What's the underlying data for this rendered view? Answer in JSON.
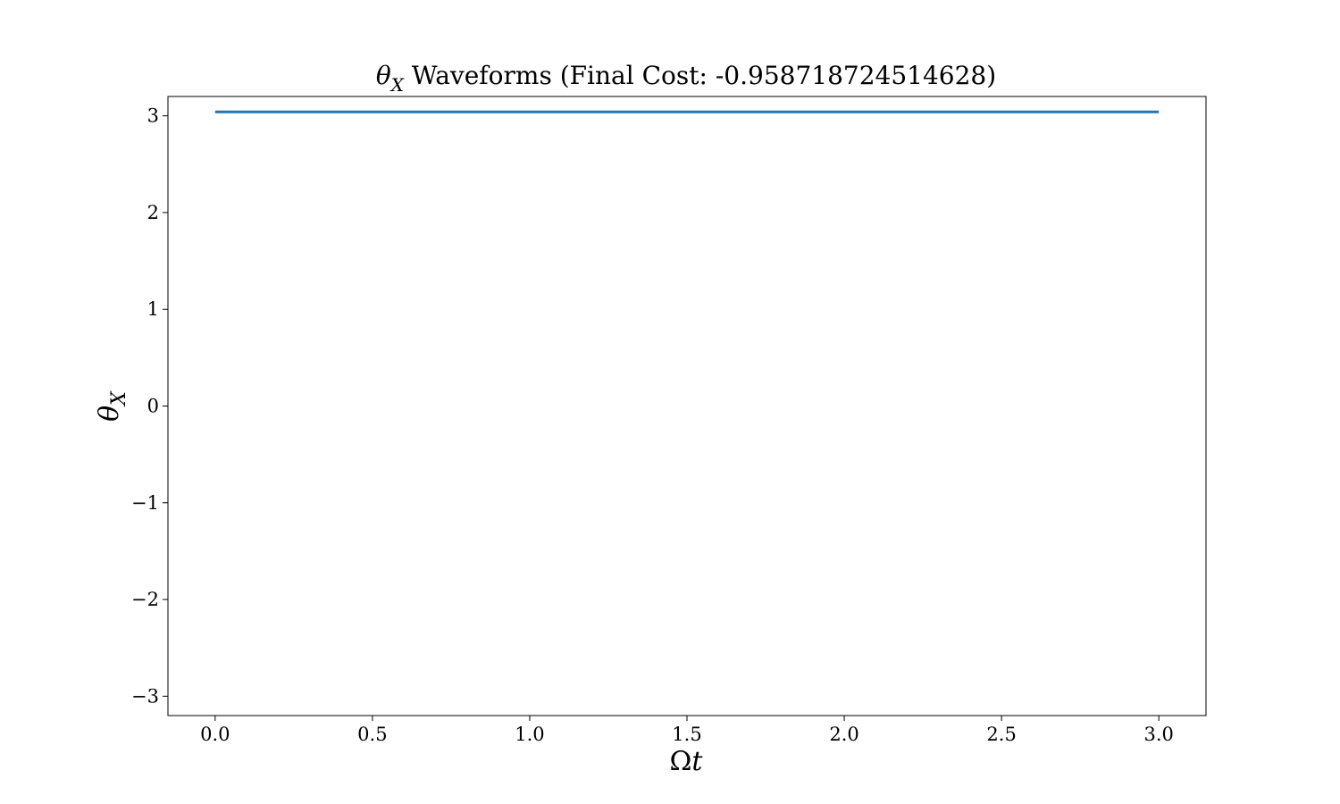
{
  "chart_data": {
    "type": "line",
    "title": {
      "symbol": "θ",
      "subscript": "X",
      "text": " Waveforms (Final Cost: -0.958718724514628)"
    },
    "xlabel": {
      "symbol": "Ω",
      "variable": "t"
    },
    "ylabel": {
      "symbol": "θ",
      "subscript": "X"
    },
    "xlim": [
      -0.15,
      3.15
    ],
    "ylim": [
      -3.2,
      3.2
    ],
    "xticks": [
      0.0,
      0.5,
      1.0,
      1.5,
      2.0,
      2.5,
      3.0
    ],
    "xtick_labels": [
      "0.0",
      "0.5",
      "1.0",
      "1.5",
      "2.0",
      "2.5",
      "3.0"
    ],
    "yticks": [
      3,
      2,
      1,
      0,
      -1,
      -2,
      -3
    ],
    "ytick_labels": [
      "3",
      "2",
      "1",
      "0",
      "−1",
      "−2",
      "−3"
    ],
    "grid": false,
    "series": [
      {
        "color": "#1f77b4",
        "x": [
          0.0,
          3.0
        ],
        "y": [
          3.04,
          3.04
        ]
      }
    ]
  }
}
